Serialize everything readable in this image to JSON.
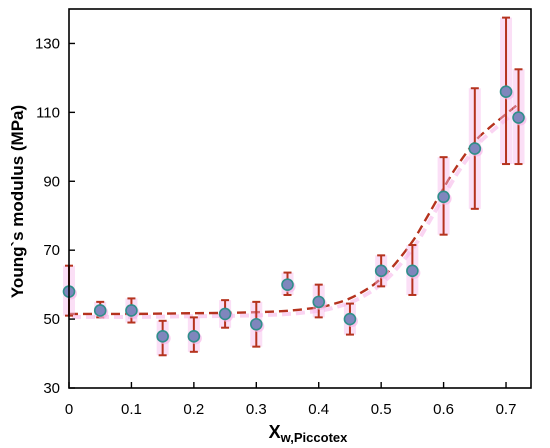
{
  "chart_data": {
    "type": "scatter",
    "title": "",
    "xlabel": {
      "main": "X",
      "subscript": "w,Piccotex"
    },
    "ylabel": "Young`s modulus (MPa)",
    "xlim": [
      0,
      0.74
    ],
    "ylim": [
      30,
      140
    ],
    "x_ticks": [
      0,
      0.1,
      0.2,
      0.3,
      0.4,
      0.5,
      0.6,
      0.7
    ],
    "x_tick_labels": [
      "0",
      "0.1",
      "0.2",
      "0.3",
      "0.4",
      "0.5",
      "0.6",
      "0.7"
    ],
    "y_ticks": [
      30,
      50,
      70,
      90,
      110,
      130
    ],
    "y_tick_labels": [
      "30",
      "50",
      "70",
      "90",
      "110",
      "130"
    ],
    "grid": false,
    "series": [
      {
        "values": [
          {
            "x": 0.0,
            "y": 58.0,
            "err_low": 51.0,
            "err_high": 65.5
          },
          {
            "x": 0.05,
            "y": 52.5,
            "err_low": 50.5,
            "err_high": 55.0
          },
          {
            "x": 0.1,
            "y": 52.5,
            "err_low": 49.0,
            "err_high": 56.0
          },
          {
            "x": 0.15,
            "y": 45.0,
            "err_low": 39.5,
            "err_high": 49.5
          },
          {
            "x": 0.2,
            "y": 45.0,
            "err_low": 40.5,
            "err_high": 50.5
          },
          {
            "x": 0.25,
            "y": 51.5,
            "err_low": 47.5,
            "err_high": 55.5
          },
          {
            "x": 0.3,
            "y": 48.5,
            "err_low": 42.0,
            "err_high": 55.0
          },
          {
            "x": 0.35,
            "y": 60.0,
            "err_low": 57.0,
            "err_high": 63.5
          },
          {
            "x": 0.4,
            "y": 55.0,
            "err_low": 50.5,
            "err_high": 60.0
          },
          {
            "x": 0.45,
            "y": 50.0,
            "err_low": 45.5,
            "err_high": 54.5
          },
          {
            "x": 0.5,
            "y": 64.0,
            "err_low": 59.5,
            "err_high": 68.5
          },
          {
            "x": 0.55,
            "y": 64.0,
            "err_low": 57.0,
            "err_high": 71.5
          },
          {
            "x": 0.6,
            "y": 85.5,
            "err_low": 74.5,
            "err_high": 97.0
          },
          {
            "x": 0.65,
            "y": 99.5,
            "err_low": 82.0,
            "err_high": 117.0
          },
          {
            "x": 0.7,
            "y": 116.0,
            "err_low": 95.0,
            "err_high": 137.5
          },
          {
            "x": 0.72,
            "y": 108.5,
            "err_low": 95.0,
            "err_high": 122.5
          }
        ],
        "marker_color": "#7f86bd",
        "marker_edge_color": "#2f8f8a",
        "error_bar_color": "#b5331e"
      }
    ],
    "fit_curve": {
      "style": "dashed",
      "color": "#b5331e",
      "x": [
        0,
        0.05,
        0.1,
        0.15,
        0.2,
        0.25,
        0.3,
        0.35,
        0.4,
        0.42,
        0.45,
        0.48,
        0.5,
        0.52,
        0.55,
        0.57,
        0.6,
        0.62,
        0.65,
        0.67,
        0.7,
        0.72
      ],
      "y": [
        51.5,
        51.5,
        51.5,
        51.6,
        51.7,
        51.8,
        52.0,
        52.4,
        53.4,
        54.2,
        56.0,
        59.0,
        61.8,
        65.5,
        72.5,
        78.5,
        88.0,
        94.0,
        101.5,
        105.0,
        109.5,
        112.5
      ]
    },
    "shadow_color": "#f6b8ea"
  }
}
